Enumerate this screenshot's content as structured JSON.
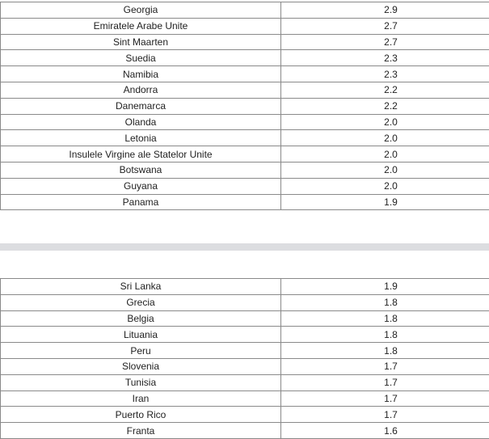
{
  "table_top": {
    "rows": [
      [
        "Georgia",
        "2.9"
      ],
      [
        "Emiratele Arabe Unite",
        "2.7"
      ],
      [
        "Sint Maarten",
        "2.7"
      ],
      [
        "Suedia",
        "2.3"
      ],
      [
        "Namibia",
        "2.3"
      ],
      [
        "Andorra",
        "2.2"
      ],
      [
        "Danemarca",
        "2.2"
      ],
      [
        "Olanda",
        "2.0"
      ],
      [
        "Letonia",
        "2.0"
      ],
      [
        "Insulele Virgine ale Statelor Unite",
        "2.0"
      ],
      [
        "Botswana",
        "2.0"
      ],
      [
        "Guyana",
        "2.0"
      ],
      [
        "Panama",
        "1.9"
      ]
    ]
  },
  "table_bottom": {
    "rows": [
      [
        "Sri Lanka",
        "1.9"
      ],
      [
        "Grecia",
        "1.8"
      ],
      [
        "Belgia",
        "1.8"
      ],
      [
        "Lituania",
        "1.8"
      ],
      [
        "Peru",
        "1.8"
      ],
      [
        "Slovenia",
        "1.7"
      ],
      [
        "Tunisia",
        "1.7"
      ],
      [
        "Iran",
        "1.7"
      ],
      [
        "Puerto Rico",
        "1.7"
      ],
      [
        "Franta",
        "1.6"
      ]
    ]
  }
}
